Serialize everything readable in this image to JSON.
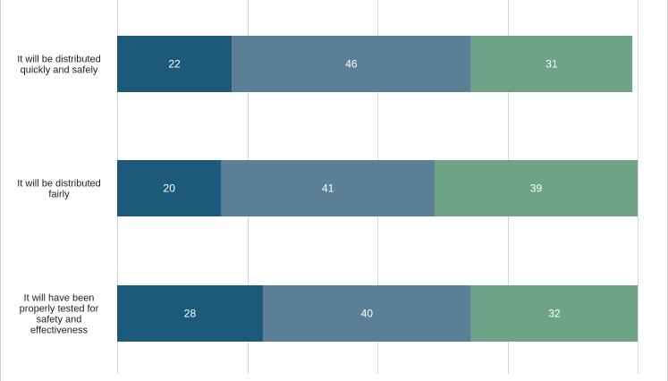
{
  "chart_data": {
    "type": "bar",
    "orientation": "horizontal",
    "stacked": true,
    "categories": [
      [
        "It will be distributed",
        "quickly and safely"
      ],
      [
        "It will be distributed",
        "fairly"
      ],
      [
        "It will have been",
        "properly tested for",
        "safety and",
        "effectiveness"
      ]
    ],
    "series": [
      {
        "values": [
          22,
          20,
          28
        ],
        "color": "#1b5a7a"
      },
      {
        "values": [
          46,
          41,
          40
        ],
        "color": "#5b7f96"
      },
      {
        "values": [
          31,
          39,
          32
        ],
        "color": "#6ea387"
      }
    ],
    "xlim": [
      0,
      100
    ],
    "grid": true,
    "title": "",
    "xlabel": "",
    "ylabel": "",
    "legend": "none"
  }
}
